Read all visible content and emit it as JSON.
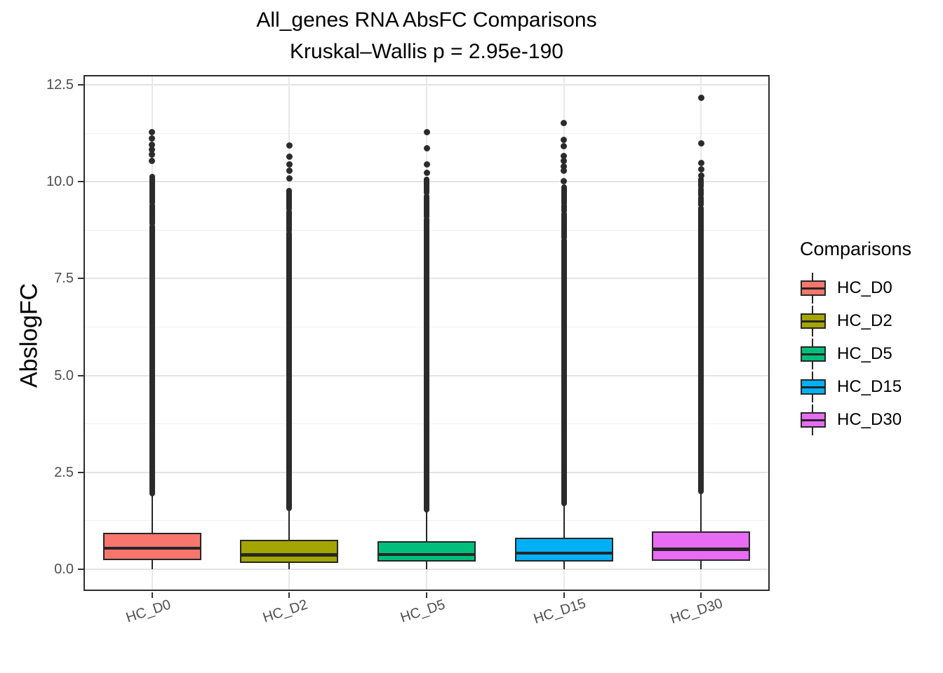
{
  "title": "All_genes RNA AbsFC Comparisons",
  "subtitle": "Kruskal–Wallis p = 2.95e-190",
  "axes": {
    "y_label": "AbslogFC",
    "y_tick_labels": [
      "0.0",
      "2.5",
      "5.0",
      "7.5",
      "10.0",
      "12.5"
    ],
    "x_tick_labels": [
      "HC_D0",
      "HC_D2",
      "HC_D5",
      "HC_D15",
      "HC_D30"
    ]
  },
  "legend": {
    "title": "Comparisons",
    "items": [
      {
        "label": "HC_D0",
        "color": "#F8766D"
      },
      {
        "label": "HC_D2",
        "color": "#A3A500"
      },
      {
        "label": "HC_D5",
        "color": "#00BF7D"
      },
      {
        "label": "HC_D15",
        "color": "#00B0F6"
      },
      {
        "label": "HC_D30",
        "color": "#E76BF3"
      }
    ]
  },
  "chart_data": {
    "type": "boxplot",
    "title": "All_genes RNA AbsFC Comparisons",
    "subtitle": "Kruskal–Wallis p = 2.95e-190",
    "xlabel": "",
    "ylabel": "AbslogFC",
    "ylim": [
      0,
      12.5
    ],
    "y_major_ticks": [
      0.0,
      2.5,
      5.0,
      7.5,
      10.0,
      12.5
    ],
    "y_minor_ticks": [
      1.25,
      3.75,
      6.25,
      8.75,
      11.25
    ],
    "grid": true,
    "legend_position": "right",
    "legend_title": "Comparisons",
    "categories": [
      "HC_D0",
      "HC_D2",
      "HC_D5",
      "HC_D15",
      "HC_D30"
    ],
    "series": [
      {
        "name": "HC_D0",
        "color": "#F8766D",
        "whisker_low": 0.0,
        "q1": 0.23,
        "median": 0.54,
        "q3": 0.94,
        "whisker_high": 1.95,
        "outlier_dense_segments": [
          [
            1.95,
            8.85
          ],
          [
            8.92,
            9.38
          ],
          [
            9.46,
            10.13
          ]
        ],
        "outlier_dots": [
          10.53,
          10.7,
          10.82,
          10.95,
          11.12,
          11.28
        ],
        "max_outlier": 11.28
      },
      {
        "name": "HC_D2",
        "color": "#A3A500",
        "whisker_low": 0.0,
        "q1": 0.17,
        "median": 0.37,
        "q3": 0.76,
        "whisker_high": 1.57,
        "outlier_dense_segments": [
          [
            1.57,
            8.66
          ],
          [
            8.74,
            9.22
          ],
          [
            9.3,
            9.77
          ]
        ],
        "outlier_dots": [
          10.08,
          10.28,
          10.44,
          10.65,
          10.93
        ],
        "max_outlier": 10.93
      },
      {
        "name": "HC_D5",
        "color": "#00BF7D",
        "whisker_low": 0.0,
        "q1": 0.19,
        "median": 0.38,
        "q3": 0.73,
        "whisker_high": 1.54,
        "outlier_dense_segments": [
          [
            1.54,
            9.02
          ],
          [
            9.1,
            9.63
          ],
          [
            9.71,
            10.05
          ]
        ],
        "outlier_dots": [
          10.22,
          10.44,
          10.87,
          11.27
        ],
        "max_outlier": 11.27
      },
      {
        "name": "HC_D15",
        "color": "#00B0F6",
        "whisker_low": 0.0,
        "q1": 0.2,
        "median": 0.42,
        "q3": 0.82,
        "whisker_high": 1.7,
        "outlier_dense_segments": [
          [
            1.7,
            8.48
          ],
          [
            8.56,
            9.17
          ],
          [
            9.24,
            9.38
          ],
          [
            9.45,
            9.85
          ]
        ],
        "outlier_dots": [
          10.02,
          10.28,
          10.4,
          10.53,
          10.67,
          10.92,
          11.07,
          11.52
        ],
        "max_outlier": 11.52
      },
      {
        "name": "HC_D30",
        "color": "#E76BF3",
        "whisker_low": 0.0,
        "q1": 0.22,
        "median": 0.52,
        "q3": 0.97,
        "whisker_high": 2.01,
        "outlier_dense_segments": [
          [
            2.01,
            9.32
          ],
          [
            9.4,
            9.58
          ],
          [
            9.66,
            9.8
          ],
          [
            9.88,
            10.05
          ]
        ],
        "outlier_dots": [
          10.16,
          10.32,
          10.49,
          10.98,
          12.16
        ],
        "max_outlier": 12.16
      }
    ]
  }
}
